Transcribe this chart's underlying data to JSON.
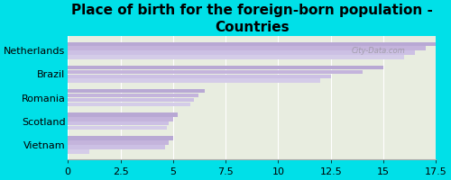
{
  "title": "Place of birth for the foreign-born population -\nCountries",
  "categories": [
    "Netherlands",
    "Brazil",
    "Romania",
    "Scotland",
    "Vietnam"
  ],
  "values_set": [
    [
      17.5,
      17.0,
      16.5,
      16.0
    ],
    [
      15.0,
      14.0,
      12.5,
      12.0
    ],
    [
      6.5,
      6.2,
      6.0,
      5.8
    ],
    [
      5.2,
      5.0,
      4.8,
      4.7
    ],
    [
      5.0,
      4.8,
      4.6,
      1.0
    ]
  ],
  "bar_colors": [
    "#b8a8d4",
    "#c4b4dc",
    "#ccc0e4",
    "#d4cce8"
  ],
  "background_color": "#00e0e8",
  "plot_bg_top": "#e8ede0",
  "plot_bg_bottom": "#f0f4e8",
  "xlim_max": 17.5,
  "xticks": [
    0,
    2.5,
    5.0,
    7.5,
    10.0,
    12.5,
    15.0,
    17.5
  ],
  "xtick_labels": [
    "0",
    "2.5",
    "5",
    "7.5",
    "10",
    "12.5",
    "15",
    "17.5"
  ],
  "watermark": "City-Data.com",
  "title_fontsize": 11,
  "tick_fontsize": 8,
  "label_fontsize": 8
}
